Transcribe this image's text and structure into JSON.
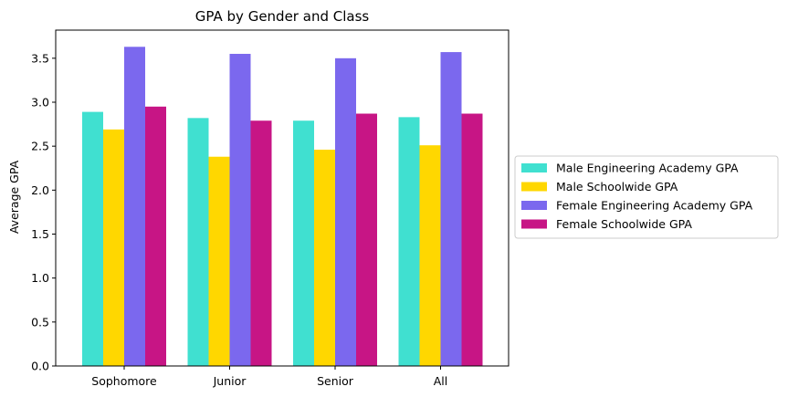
{
  "chart_data": {
    "type": "bar",
    "title": "GPA by Gender and Class",
    "xlabel": "",
    "ylabel": "Average GPA",
    "categories": [
      "Sophomore",
      "Junior",
      "Senior",
      "All"
    ],
    "ylim": [
      0,
      3.82
    ],
    "yticks": [
      "0.0",
      "0.5",
      "1.0",
      "1.5",
      "2.0",
      "2.5",
      "3.0",
      "3.5"
    ],
    "grid": false,
    "legend_position": "right-outside",
    "series": [
      {
        "name": "Male Engineering Academy GPA",
        "color": "#40E0D0",
        "values": [
          2.89,
          2.82,
          2.79,
          2.83
        ]
      },
      {
        "name": "Male Schoolwide GPA",
        "color": "#FFD700",
        "values": [
          2.69,
          2.38,
          2.46,
          2.51
        ]
      },
      {
        "name": "Female Engineering Academy GPA",
        "color": "#7B68EE",
        "values": [
          3.63,
          3.55,
          3.5,
          3.57
        ]
      },
      {
        "name": "Female Schoolwide GPA",
        "color": "#C71585",
        "values": [
          2.95,
          2.79,
          2.87,
          2.87
        ]
      }
    ]
  }
}
